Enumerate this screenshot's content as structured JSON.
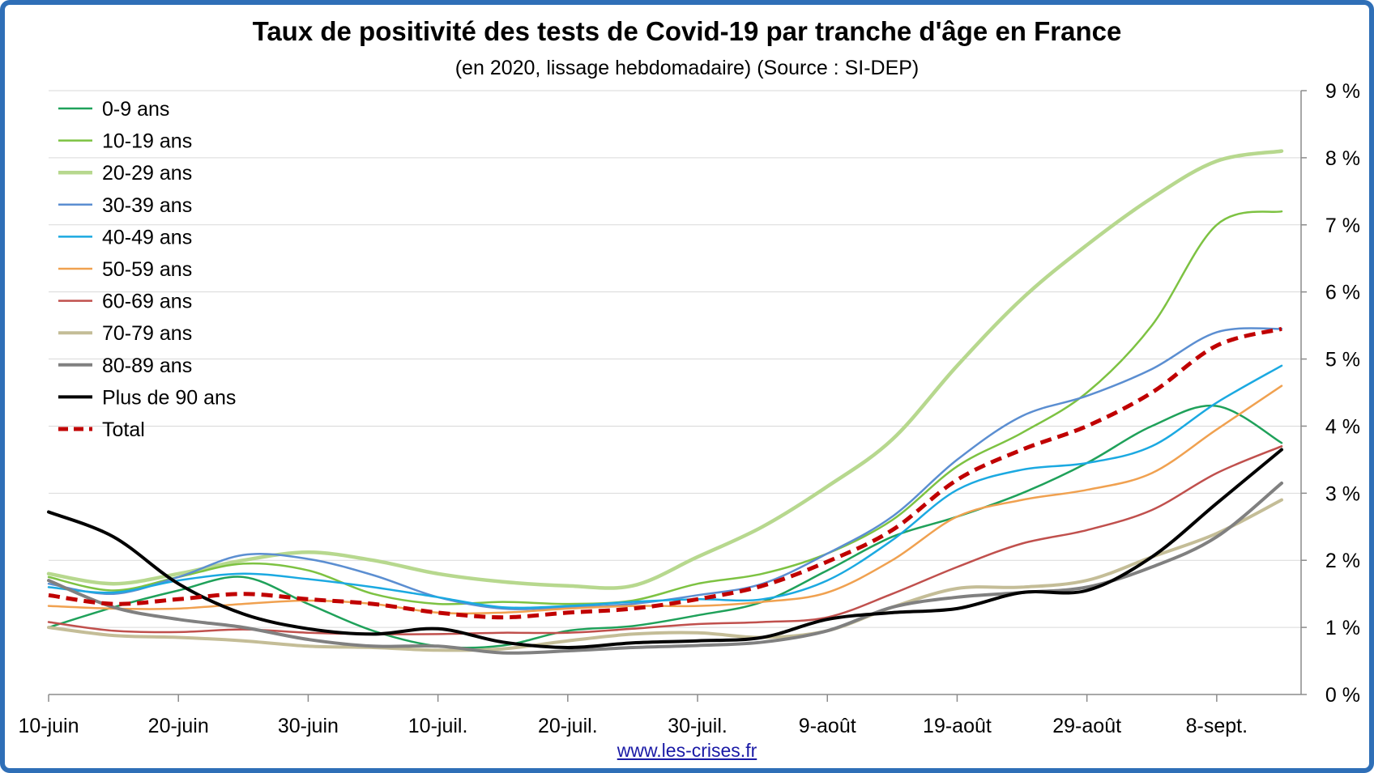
{
  "chart_data": {
    "type": "line",
    "title": "Taux de positivité des tests de Covid-19 par tranche d'âge en France",
    "subtitle": "(en 2020, lissage hebdomadaire) (Source : SI-DEP)",
    "source_link": "www.les-crises.fr",
    "x": [
      "10-juin",
      "15-juin",
      "20-juin",
      "25-juin",
      "30-juin",
      "5-juil.",
      "10-juil.",
      "15-juil.",
      "20-juil.",
      "25-juil.",
      "30-juil.",
      "4-août",
      "9-août",
      "14-août",
      "19-août",
      "24-août",
      "29-août",
      "3-sept.",
      "8-sept.",
      "11-sept."
    ],
    "x_tick_labels": [
      "10-juin",
      "20-juin",
      "30-juin",
      "10-juil.",
      "20-juil.",
      "30-juil.",
      "9-août",
      "19-août",
      "29-août",
      "8-sept."
    ],
    "y_tick_labels": [
      "0 %",
      "1 %",
      "2 %",
      "3 %",
      "4 %",
      "5 %",
      "6 %",
      "7 %",
      "8 %",
      "9 %"
    ],
    "ylim": [
      0,
      9
    ],
    "y_axis_position": "right",
    "grid": true,
    "legend_position": "top-left",
    "series": [
      {
        "name": "0-9 ans",
        "color": "#1fa15a",
        "width": 2.5,
        "values": [
          1.0,
          1.3,
          1.55,
          1.75,
          1.35,
          0.95,
          0.72,
          0.73,
          0.95,
          1.02,
          1.18,
          1.38,
          1.85,
          2.35,
          2.65,
          3.0,
          3.45,
          4.0,
          4.3,
          3.75
        ]
      },
      {
        "name": "10-19 ans",
        "color": "#7dc242",
        "width": 2.5,
        "values": [
          1.75,
          1.55,
          1.75,
          1.95,
          1.85,
          1.5,
          1.35,
          1.38,
          1.35,
          1.4,
          1.65,
          1.8,
          2.1,
          2.6,
          3.4,
          3.9,
          4.5,
          5.5,
          7.0,
          7.2
        ]
      },
      {
        "name": "20-29 ans",
        "color": "#b7d88e",
        "width": 4.5,
        "values": [
          1.8,
          1.65,
          1.8,
          2.0,
          2.12,
          2.0,
          1.8,
          1.68,
          1.62,
          1.62,
          2.05,
          2.5,
          3.1,
          3.8,
          4.9,
          5.9,
          6.7,
          7.4,
          7.95,
          8.1
        ]
      },
      {
        "name": "30-39 ans",
        "color": "#5b8ed1",
        "width": 2.5,
        "values": [
          1.65,
          1.5,
          1.75,
          2.08,
          2.02,
          1.78,
          1.45,
          1.28,
          1.3,
          1.35,
          1.48,
          1.65,
          2.1,
          2.65,
          3.5,
          4.15,
          4.45,
          4.85,
          5.4,
          5.45
        ]
      },
      {
        "name": "40-49 ans",
        "color": "#1ba9e1",
        "width": 2.5,
        "values": [
          1.6,
          1.52,
          1.7,
          1.8,
          1.72,
          1.6,
          1.45,
          1.3,
          1.32,
          1.38,
          1.42,
          1.42,
          1.7,
          2.3,
          3.05,
          3.35,
          3.45,
          3.7,
          4.35,
          4.9
        ]
      },
      {
        "name": "50-59 ans",
        "color": "#f0a150",
        "width": 2.5,
        "values": [
          1.32,
          1.28,
          1.28,
          1.35,
          1.4,
          1.35,
          1.22,
          1.22,
          1.28,
          1.32,
          1.32,
          1.38,
          1.52,
          2.0,
          2.65,
          2.9,
          3.05,
          3.3,
          3.95,
          4.6
        ]
      },
      {
        "name": "60-69 ans",
        "color": "#c0504d",
        "width": 2.5,
        "values": [
          1.08,
          0.95,
          0.93,
          0.97,
          0.92,
          0.9,
          0.9,
          0.92,
          0.92,
          0.98,
          1.05,
          1.08,
          1.15,
          1.5,
          1.9,
          2.25,
          2.45,
          2.75,
          3.3,
          3.7
        ]
      },
      {
        "name": "70-79 ans",
        "color": "#c4bd97",
        "width": 4,
        "values": [
          1.0,
          0.88,
          0.85,
          0.8,
          0.72,
          0.7,
          0.66,
          0.68,
          0.8,
          0.9,
          0.92,
          0.85,
          0.95,
          1.3,
          1.58,
          1.6,
          1.7,
          2.05,
          2.4,
          2.9
        ]
      },
      {
        "name": "80-89 ans",
        "color": "#808080",
        "width": 4,
        "values": [
          1.7,
          1.3,
          1.12,
          1.0,
          0.82,
          0.72,
          0.72,
          0.62,
          0.65,
          0.7,
          0.73,
          0.78,
          0.95,
          1.3,
          1.45,
          1.52,
          1.6,
          1.9,
          2.35,
          3.15
        ]
      },
      {
        "name": "Plus de 90 ans",
        "color": "#000000",
        "width": 4,
        "values": [
          2.72,
          2.35,
          1.65,
          1.2,
          0.98,
          0.9,
          0.98,
          0.78,
          0.7,
          0.77,
          0.8,
          0.85,
          1.12,
          1.22,
          1.28,
          1.52,
          1.55,
          2.05,
          2.85,
          3.65
        ]
      },
      {
        "name": "Total",
        "color": "#c00000",
        "width": 5,
        "dash": "14,8",
        "values": [
          1.48,
          1.35,
          1.42,
          1.5,
          1.42,
          1.35,
          1.22,
          1.15,
          1.22,
          1.28,
          1.42,
          1.62,
          1.98,
          2.45,
          3.2,
          3.65,
          4.0,
          4.5,
          5.2,
          5.45
        ]
      }
    ]
  }
}
